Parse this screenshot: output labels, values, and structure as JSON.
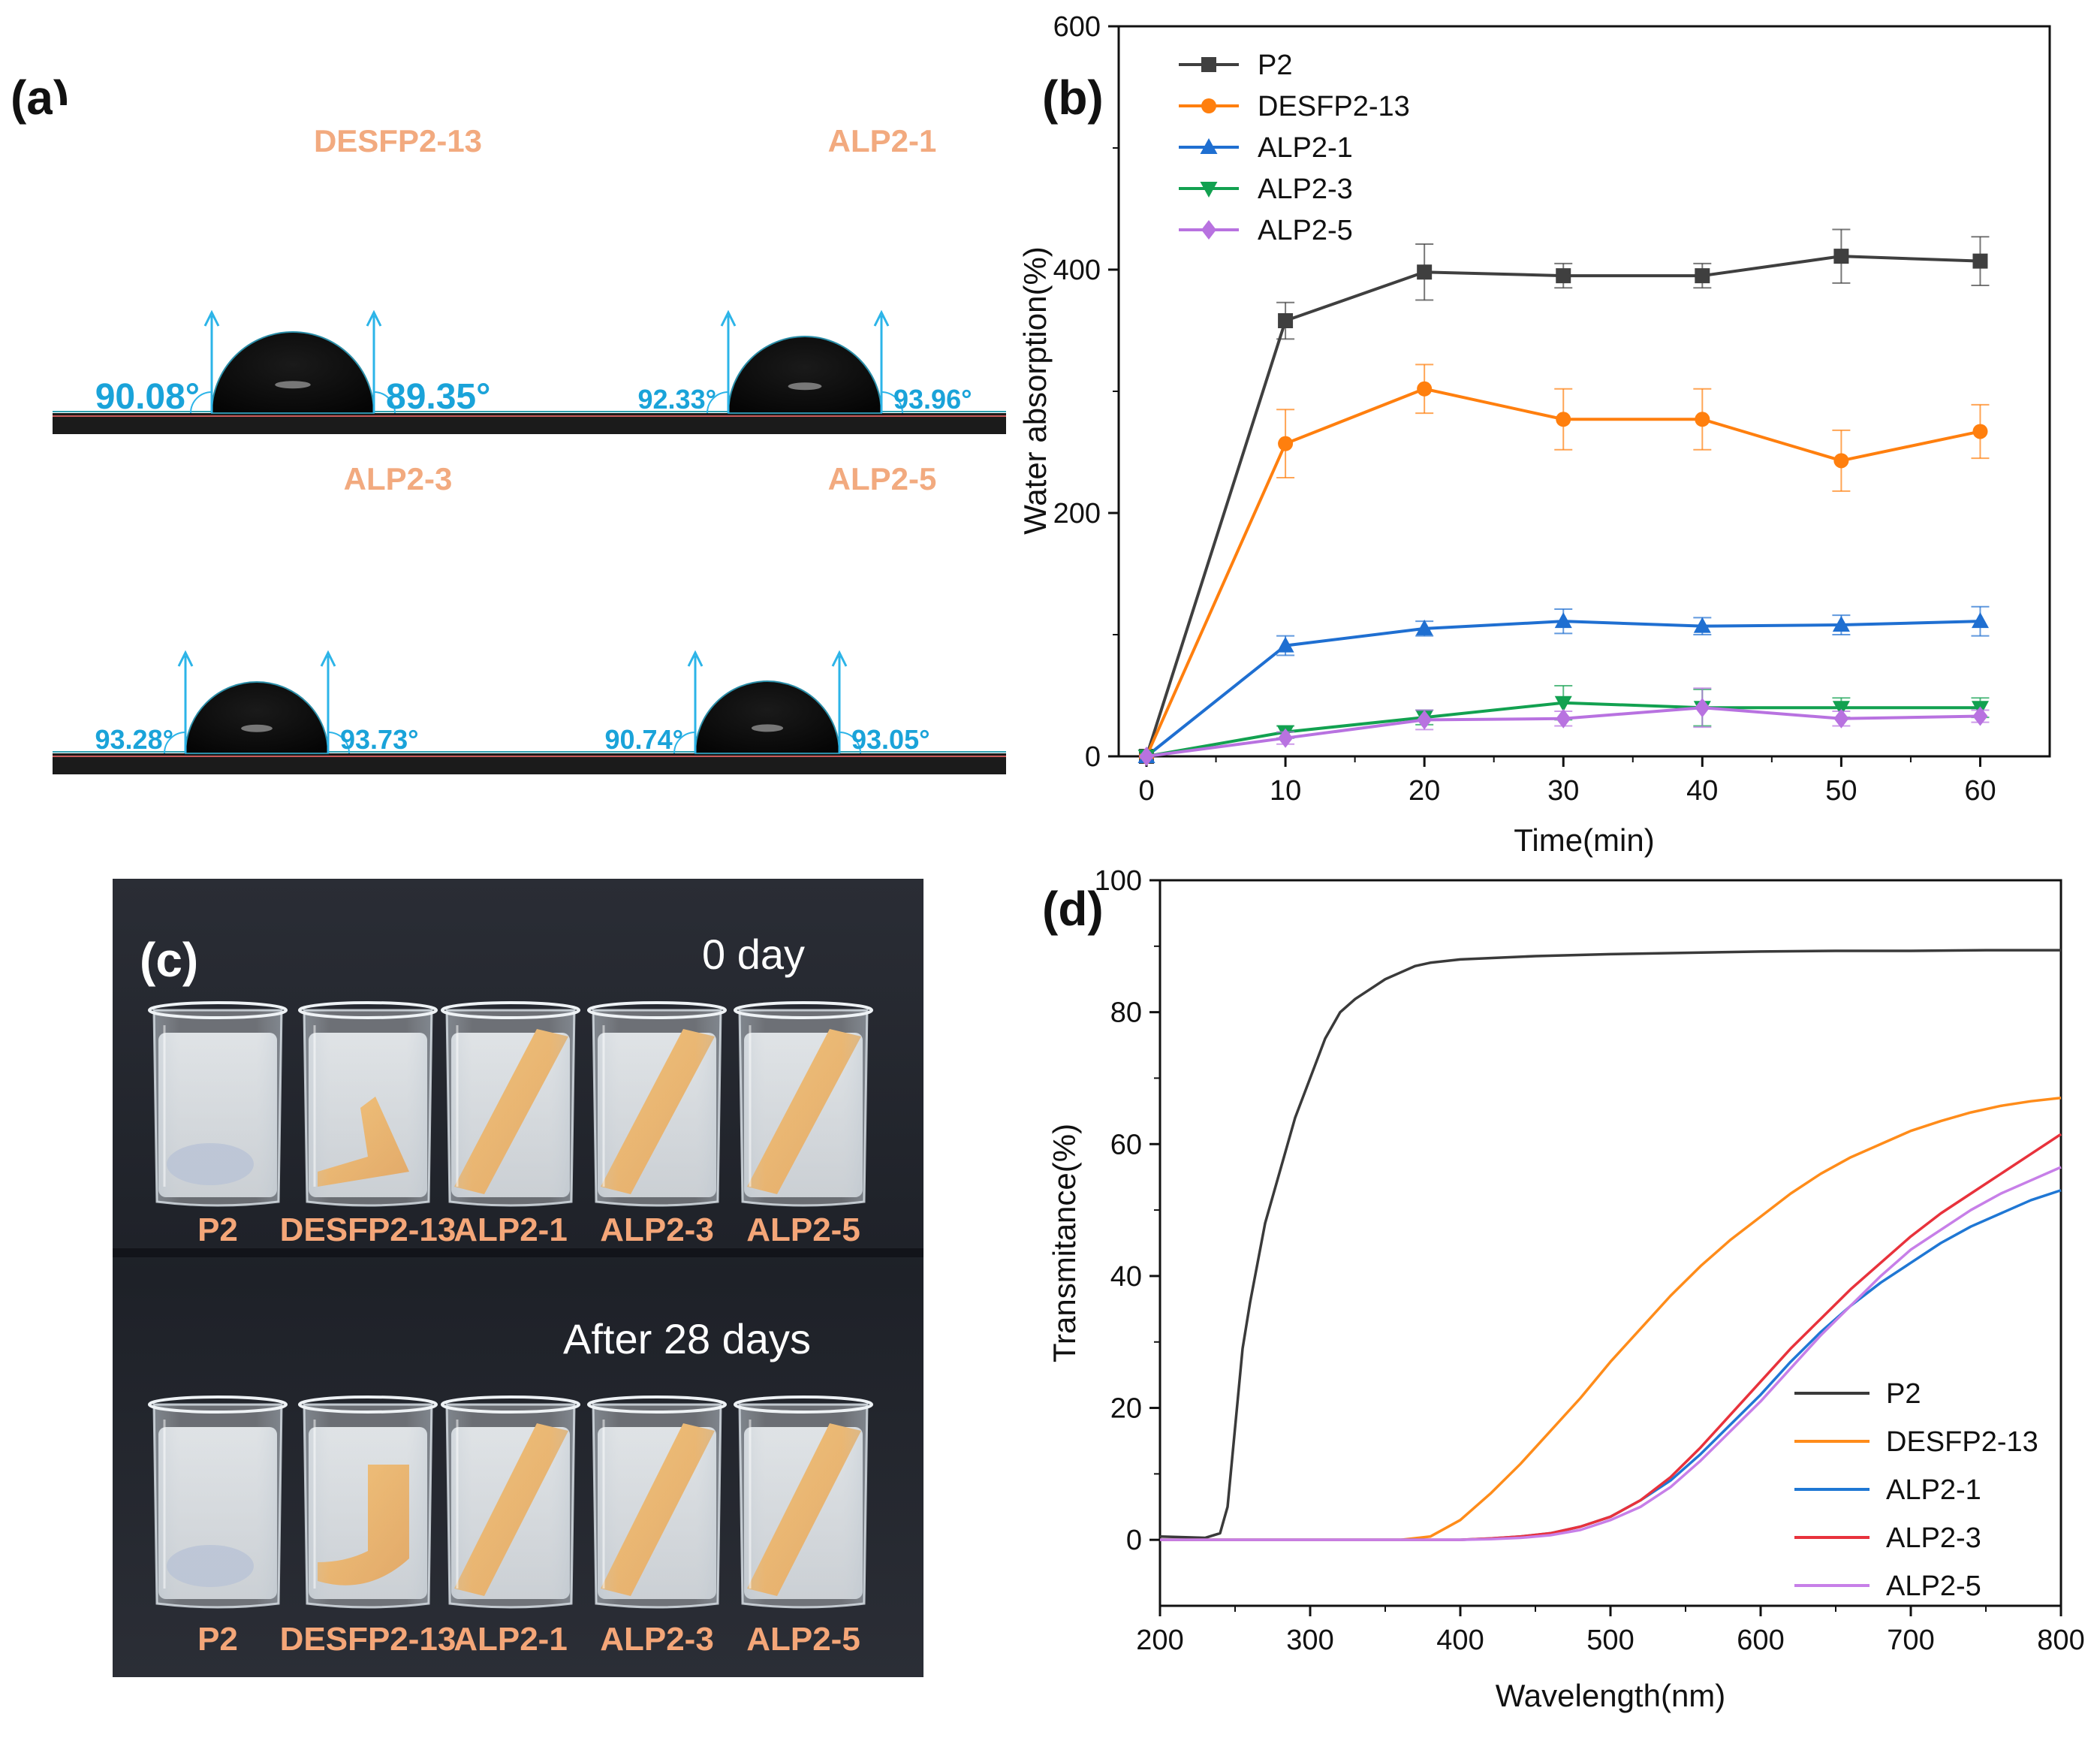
{
  "panel_a": {
    "label": "(a)",
    "samples": [
      {
        "name": "DESFP2-13",
        "left_angle": "90.08°",
        "right_angle": "89.35°"
      },
      {
        "name": "ALP2-1",
        "left_angle": "92.33°",
        "right_angle": "93.96°"
      },
      {
        "name": "ALP2-3",
        "left_angle": "93.28°",
        "right_angle": "93.73°"
      },
      {
        "name": "ALP2-5",
        "left_angle": "90.74°",
        "right_angle": "93.05°"
      }
    ]
  },
  "panel_c": {
    "label": "(c)",
    "top_caption": "0 day",
    "bottom_caption": "After 28 days",
    "beakers": [
      "P2",
      "DESFP2-13",
      "ALP2-1",
      "ALP2-3",
      "ALP2-5"
    ]
  },
  "chart_data": [
    {
      "panel": "(b)",
      "type": "line",
      "xlabel": "Time(min)",
      "ylabel": "Water absorption(%)",
      "xlim": [
        -2,
        65
      ],
      "ylim": [
        0,
        600
      ],
      "xticks": [
        0,
        10,
        20,
        30,
        40,
        50,
        60
      ],
      "yticks": [
        0,
        200,
        400,
        600
      ],
      "x": [
        0,
        10,
        20,
        30,
        40,
        50,
        60
      ],
      "legend_position": "top-left",
      "series": [
        {
          "name": "P2",
          "color": "#3f3f3f",
          "marker": "square",
          "values": [
            0,
            358,
            398,
            395,
            395,
            411,
            407
          ],
          "errors": [
            0,
            15,
            23,
            10,
            10,
            22,
            20
          ]
        },
        {
          "name": "DESFP2-13",
          "color": "#ff7f0e",
          "marker": "circle",
          "values": [
            0,
            257,
            302,
            277,
            277,
            243,
            267
          ],
          "errors": [
            0,
            28,
            20,
            25,
            25,
            25,
            22
          ]
        },
        {
          "name": "ALP2-1",
          "color": "#1f6fd1",
          "marker": "triangle-up",
          "values": [
            0,
            91,
            105,
            111,
            107,
            108,
            111
          ],
          "errors": [
            0,
            8,
            6,
            10,
            7,
            8,
            12
          ]
        },
        {
          "name": "ALP2-3",
          "color": "#12a150",
          "marker": "triangle-down",
          "values": [
            0,
            20,
            32,
            44,
            40,
            40,
            40
          ],
          "errors": [
            0,
            5,
            6,
            14,
            15,
            8,
            8
          ]
        },
        {
          "name": "ALP2-5",
          "color": "#b872e0",
          "marker": "diamond",
          "values": [
            0,
            15,
            30,
            31,
            40,
            31,
            33
          ],
          "errors": [
            0,
            5,
            8,
            6,
            16,
            6,
            5
          ]
        }
      ]
    },
    {
      "panel": "(d)",
      "type": "line",
      "xlabel": "Wavelength(nm)",
      "ylabel": "Transmitance(%)",
      "xlim": [
        200,
        800
      ],
      "ylim": [
        -10,
        100
      ],
      "xticks": [
        200,
        300,
        400,
        500,
        600,
        700,
        800
      ],
      "yticks": [
        0,
        20,
        40,
        60,
        80,
        100
      ],
      "legend_position": "bottom-right",
      "series": [
        {
          "name": "P2",
          "color": "#3a3a3a",
          "x": [
            200,
            230,
            240,
            245,
            250,
            255,
            260,
            265,
            270,
            280,
            290,
            300,
            310,
            320,
            330,
            340,
            350,
            360,
            370,
            380,
            400,
            450,
            500,
            550,
            600,
            650,
            700,
            750,
            800
          ],
          "values": [
            0.5,
            0.3,
            1,
            5,
            17,
            29,
            36,
            42,
            48,
            56,
            64,
            70,
            76,
            80,
            82,
            83.5,
            85,
            86,
            87,
            87.5,
            88,
            88.5,
            88.8,
            89,
            89.2,
            89.3,
            89.3,
            89.4,
            89.4
          ]
        },
        {
          "name": "DESFP2-13",
          "color": "#ff8c1a",
          "x": [
            200,
            360,
            380,
            400,
            420,
            440,
            460,
            480,
            500,
            520,
            540,
            560,
            580,
            600,
            620,
            640,
            660,
            680,
            700,
            720,
            740,
            760,
            780,
            800
          ],
          "values": [
            0,
            0,
            0.5,
            3,
            7,
            11.5,
            16.5,
            21.5,
            27,
            32,
            37,
            41.5,
            45.5,
            49,
            52.5,
            55.5,
            58,
            60,
            62,
            63.5,
            64.8,
            65.8,
            66.5,
            67
          ]
        },
        {
          "name": "ALP2-1",
          "color": "#1f77d4",
          "x": [
            200,
            400,
            420,
            440,
            460,
            480,
            500,
            520,
            540,
            560,
            580,
            600,
            620,
            640,
            660,
            680,
            700,
            720,
            740,
            760,
            780,
            800
          ],
          "values": [
            0,
            0,
            0.2,
            0.5,
            1,
            2,
            3.5,
            6,
            9,
            13,
            17.5,
            22,
            27,
            31.5,
            35.5,
            39,
            42,
            45,
            47.5,
            49.5,
            51.5,
            53
          ]
        },
        {
          "name": "ALP2-3",
          "color": "#e8323c",
          "x": [
            200,
            400,
            420,
            440,
            460,
            480,
            500,
            520,
            540,
            560,
            580,
            600,
            620,
            640,
            660,
            680,
            700,
            720,
            740,
            760,
            780,
            800
          ],
          "values": [
            0,
            0,
            0.2,
            0.5,
            1,
            2,
            3.5,
            6,
            9.5,
            14,
            19,
            24,
            29,
            33.5,
            38,
            42,
            46,
            49.5,
            52.5,
            55.5,
            58.5,
            61.5
          ]
        },
        {
          "name": "ALP2-5",
          "color": "#c77fe8",
          "x": [
            200,
            400,
            420,
            440,
            460,
            480,
            500,
            520,
            540,
            560,
            580,
            600,
            620,
            640,
            660,
            680,
            700,
            720,
            740,
            760,
            780,
            800
          ],
          "values": [
            0,
            0,
            0.1,
            0.3,
            0.7,
            1.5,
            3,
            5,
            8,
            12,
            16.5,
            21,
            26,
            31,
            35.5,
            40,
            44,
            47,
            50,
            52.5,
            54.5,
            56.5
          ]
        }
      ]
    }
  ]
}
